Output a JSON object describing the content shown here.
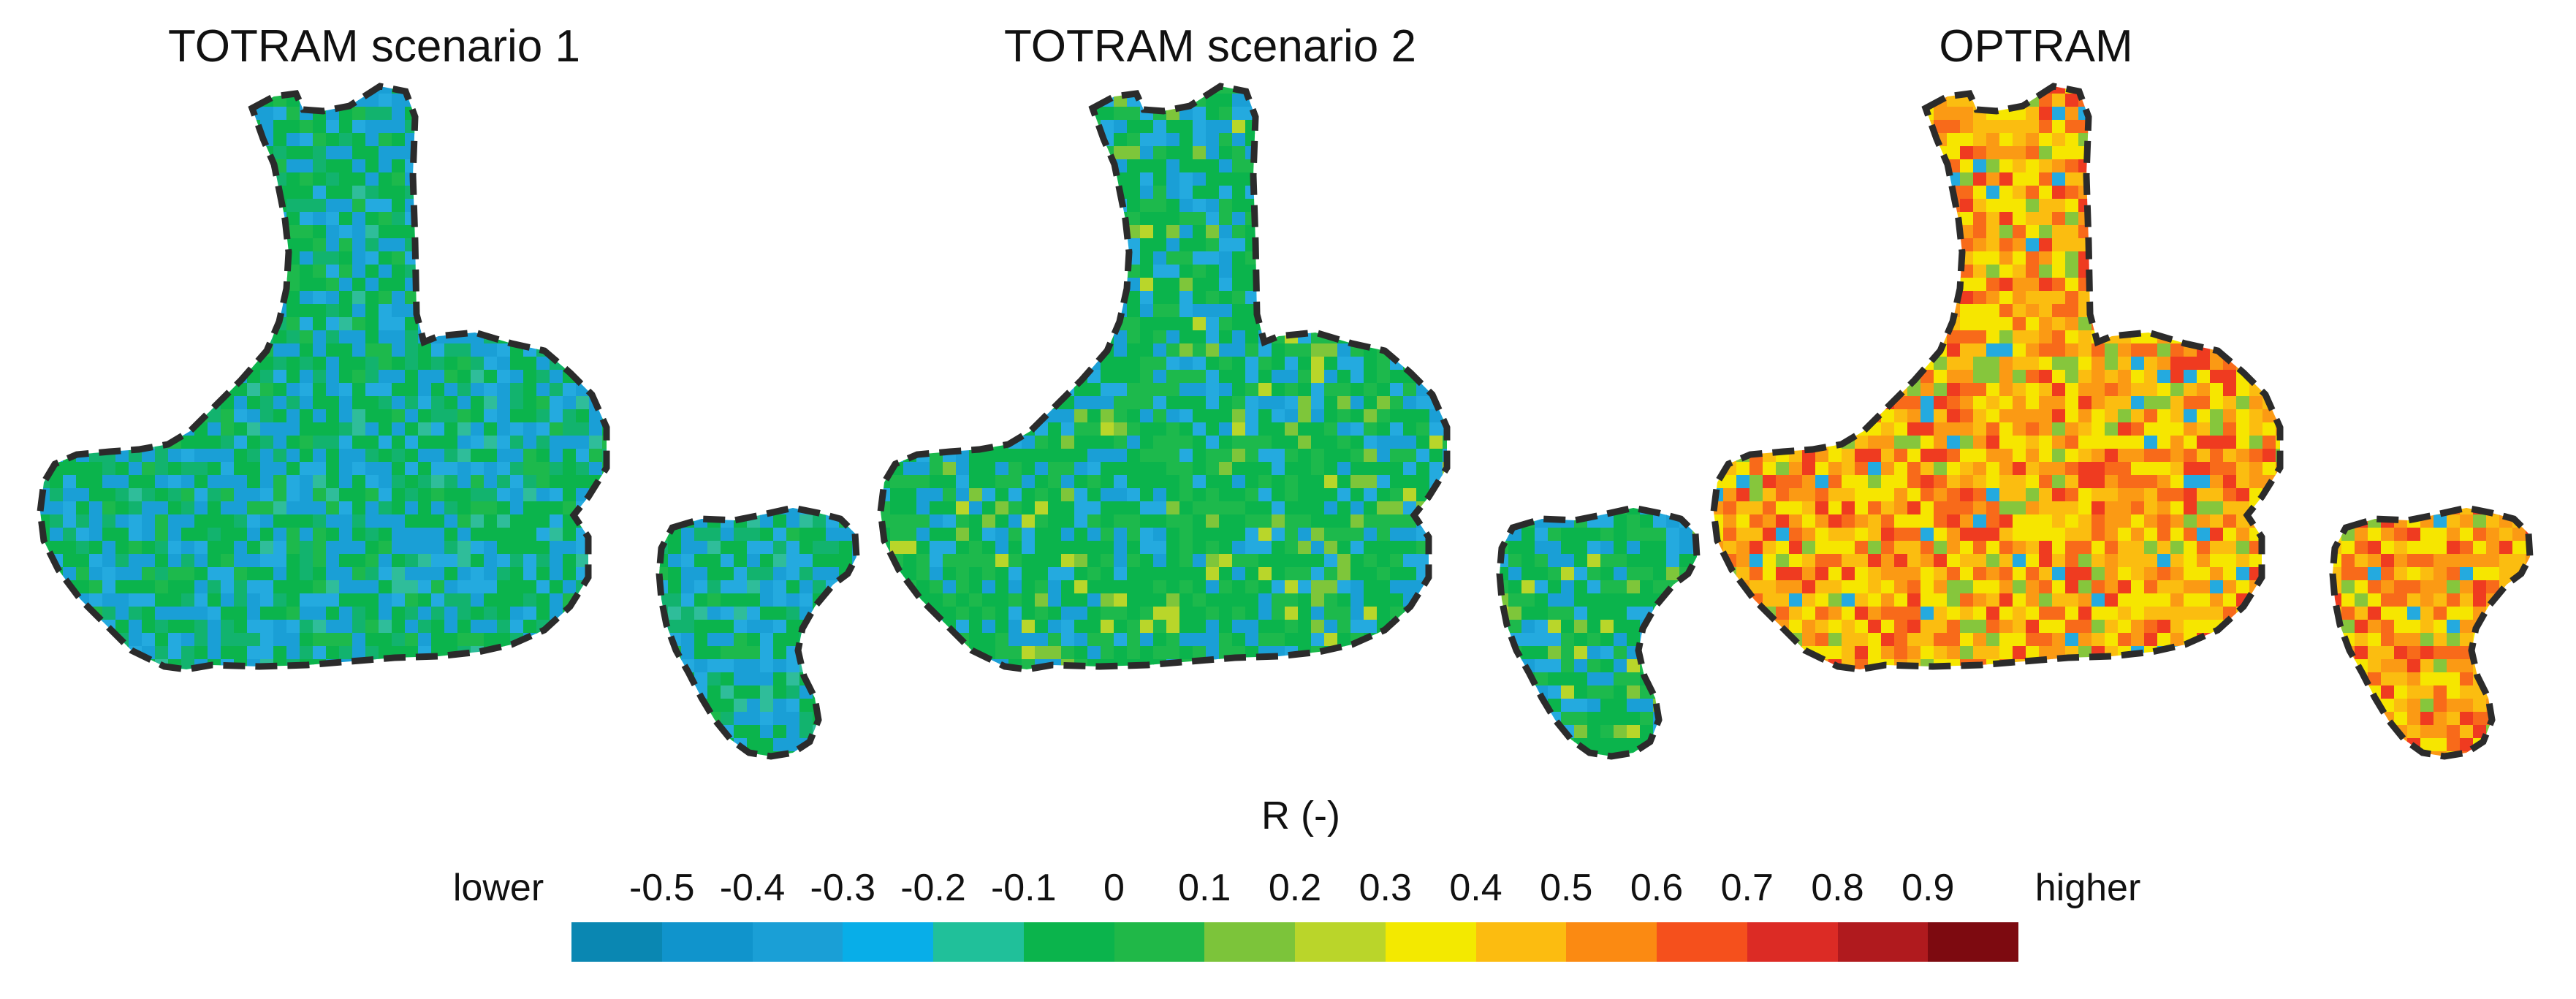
{
  "panels": [
    {
      "title": "TOTRAM scenario 1",
      "palette": [
        "#1a9fd6",
        "#24aadf",
        "#12b36e",
        "#0bb44c",
        "#1db94c",
        "#2fbd9a"
      ],
      "weights": [
        0.28,
        0.14,
        0.12,
        0.34,
        0.08,
        0.04
      ]
    },
    {
      "title": "TOTRAM scenario 2",
      "palette": [
        "#1a9fd6",
        "#24aadf",
        "#0bb44c",
        "#1db94c",
        "#7ec63a",
        "#b9d62a"
      ],
      "weights": [
        0.14,
        0.14,
        0.38,
        0.26,
        0.05,
        0.03
      ]
    },
    {
      "title": "OPTRAM",
      "palette": [
        "#f6e600",
        "#fbbd10",
        "#fb9a14",
        "#f86a1a",
        "#ef3b20",
        "#86c63c",
        "#24aadf"
      ],
      "weights": [
        0.22,
        0.2,
        0.18,
        0.18,
        0.1,
        0.08,
        0.04
      ]
    }
  ],
  "colorbar": {
    "title": "R (-)",
    "labels": [
      "lower",
      "-0.5",
      "-0.4",
      "-0.3",
      "-0.2",
      "-0.1",
      "0",
      "0.1",
      "0.2",
      "0.3",
      "0.4",
      "0.5",
      "0.6",
      "0.7",
      "0.8",
      "0.9",
      "higher"
    ],
    "colors": [
      "#0a87b2",
      "#1094cc",
      "#1a9fd6",
      "#08aee8",
      "#20c09a",
      "#0bb44c",
      "#20b848",
      "#7cc43a",
      "#bad52a",
      "#f3e900",
      "#fcbc10",
      "#fb8a12",
      "#f5501c",
      "#dc2b25",
      "#b01a1e",
      "#7d0a10"
    ]
  }
}
